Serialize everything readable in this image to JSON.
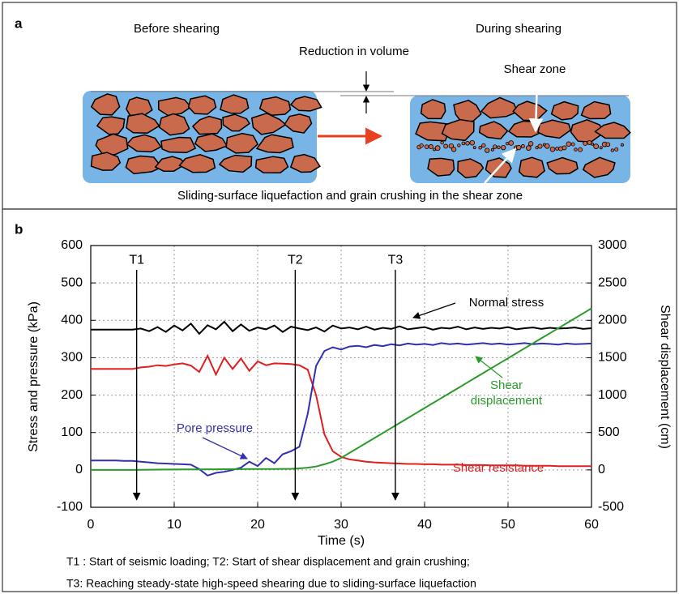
{
  "panel_a": {
    "label": "a",
    "before": "Before shearing",
    "during": "During shearing",
    "volume": "Reduction in volume",
    "shear_zone": "Shear zone",
    "caption": "Sliding-surface liquefaction and grain crushing in the shear zone"
  },
  "chart_data": {
    "type": "line",
    "panel_label": "b",
    "x_label": "Time (s)",
    "y_label": "Stress and pressure (kPa)",
    "y2_label": "Shear displacement (cm)",
    "xlim": [
      0,
      60
    ],
    "xticks": [
      0,
      10,
      20,
      30,
      40,
      50,
      60
    ],
    "ylim": [
      -100,
      600
    ],
    "yticks": [
      -100,
      0,
      100,
      200,
      300,
      400,
      500,
      600
    ],
    "y2lim": [
      -500,
      3000
    ],
    "y2ticks": [
      -500,
      0,
      500,
      1000,
      1500,
      2000,
      2500,
      3000
    ],
    "y2_color": "#2a9a2a",
    "grid": true,
    "x": [
      0,
      1,
      2,
      3,
      4,
      5,
      6,
      7,
      8,
      9,
      10,
      11,
      12,
      13,
      14,
      15,
      16,
      17,
      18,
      19,
      20,
      21,
      22,
      23,
      24,
      25,
      26,
      27,
      28,
      29,
      30,
      31,
      32,
      33,
      34,
      35,
      36,
      37,
      38,
      39,
      40,
      41,
      42,
      43,
      44,
      45,
      46,
      47,
      48,
      49,
      50,
      51,
      52,
      53,
      54,
      55,
      56,
      57,
      58,
      59,
      60
    ],
    "series": [
      {
        "name": "Normal stress",
        "color": "#000000",
        "values": [
          375,
          375,
          375,
          375,
          375,
          375,
          378,
          371,
          382,
          369,
          386,
          373,
          391,
          364,
          387,
          376,
          396,
          371,
          389,
          372,
          381,
          376,
          386,
          369,
          383,
          378,
          374,
          381,
          370,
          386,
          378,
          381,
          376,
          383,
          375,
          380,
          377,
          384,
          376,
          379,
          382,
          375,
          380,
          378,
          383,
          376,
          381,
          377,
          380,
          378,
          382,
          376,
          379,
          381,
          377,
          380,
          378,
          379,
          381,
          377,
          379
        ]
      },
      {
        "name": "Shear resistance",
        "color": "#e02020",
        "values": [
          270,
          270,
          270,
          270,
          270,
          270,
          274,
          276,
          280,
          278,
          282,
          285,
          279,
          262,
          305,
          255,
          300,
          270,
          298,
          265,
          290,
          280,
          285,
          284,
          283,
          280,
          268,
          200,
          95,
          50,
          35,
          28,
          25,
          22,
          20,
          19,
          18,
          17,
          16,
          16,
          15,
          15,
          14,
          14,
          14,
          13,
          13,
          13,
          12,
          12,
          12,
          12,
          11,
          11,
          11,
          11,
          10,
          10,
          10,
          10,
          10
        ]
      },
      {
        "name": "Pore pressure",
        "color": "#3030b0",
        "values": [
          25,
          25,
          25,
          25,
          24,
          24,
          22,
          20,
          18,
          17,
          16,
          15,
          14,
          2,
          -15,
          -8,
          -5,
          0,
          6,
          22,
          10,
          32,
          18,
          42,
          50,
          62,
          150,
          278,
          318,
          328,
          322,
          330,
          332,
          328,
          334,
          331,
          336,
          333,
          338,
          335,
          337,
          334,
          339,
          336,
          338,
          335,
          337,
          339,
          336,
          338,
          335,
          337,
          339,
          336,
          338,
          337,
          335,
          338,
          336,
          337,
          338
        ]
      },
      {
        "name": "Shear displacement",
        "color": "#2a9a2a",
        "axis": "y2",
        "values": [
          0,
          0,
          0,
          0,
          0,
          0,
          2,
          3,
          4,
          5,
          5,
          6,
          6,
          7,
          8,
          8,
          9,
          10,
          10,
          11,
          12,
          12,
          13,
          14,
          15,
          20,
          30,
          45,
          75,
          110,
          160,
          227,
          293,
          360,
          427,
          493,
          560,
          627,
          693,
          760,
          827,
          893,
          960,
          1027,
          1093,
          1160,
          1227,
          1293,
          1360,
          1427,
          1493,
          1560,
          1627,
          1693,
          1760,
          1827,
          1893,
          1960,
          2027,
          2093,
          2160
        ]
      }
    ],
    "markers": [
      {
        "label": "T1",
        "x": 5.5
      },
      {
        "label": "T2",
        "x": 24.5
      },
      {
        "label": "T3",
        "x": 36.5
      }
    ],
    "notes": [
      "T1 : Start of seismic loading; T2: Start of shear displacement and grain crushing;",
      "T3: Reaching steady-state high-speed shearing due to sliding-surface liquefaction"
    ]
  }
}
